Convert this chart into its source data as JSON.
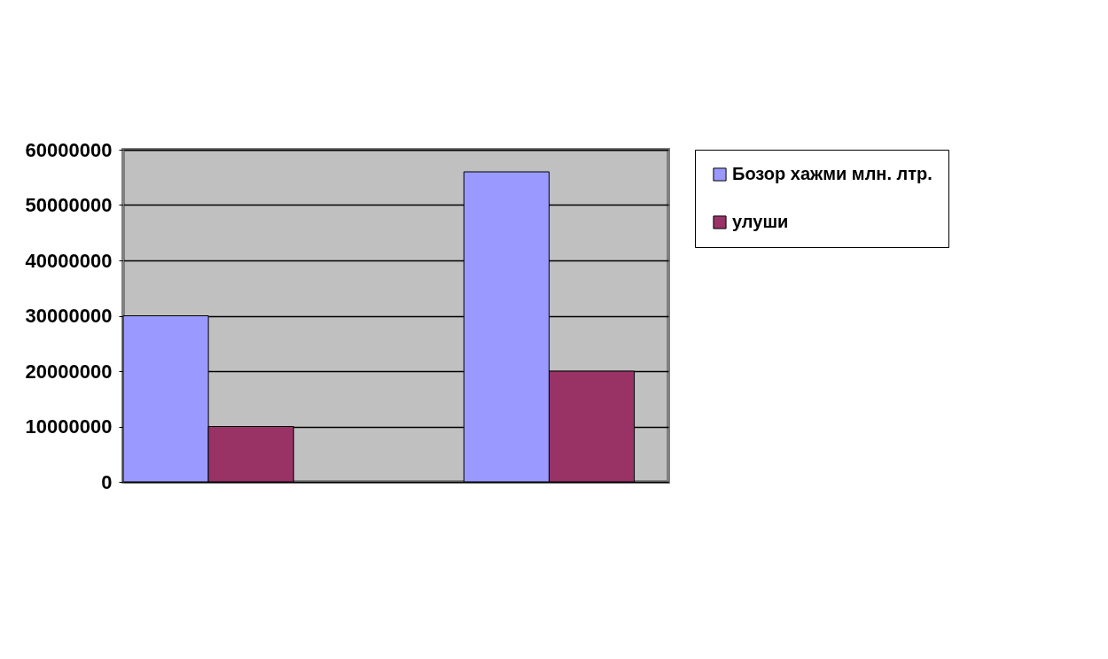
{
  "chart_data": {
    "type": "bar",
    "categories": [
      null,
      null
    ],
    "series": [
      {
        "name": "Бозор хажми млн. лтр.",
        "color": "#9999ff",
        "values": [
          30000000,
          56000000
        ]
      },
      {
        "name": "улуши",
        "color": "#993366",
        "values": [
          10000000,
          20000000
        ]
      }
    ],
    "ylim": [
      0,
      60000000
    ],
    "yticks": [
      0,
      10000000,
      20000000,
      30000000,
      40000000,
      50000000,
      60000000
    ],
    "grid": "y",
    "legend": "right"
  }
}
